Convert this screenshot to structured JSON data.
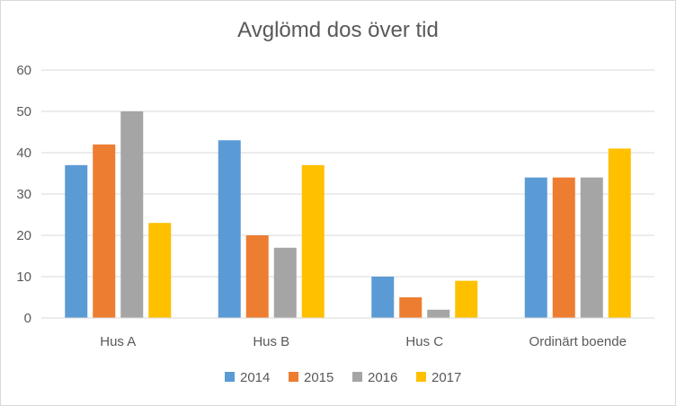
{
  "chart_data": {
    "type": "bar",
    "title": "Avglömd dos över tid",
    "categories": [
      "Hus A",
      "Hus B",
      "Hus C",
      "Ordinärt boende"
    ],
    "series": [
      {
        "name": "2014",
        "color": "#5b9bd5",
        "values": [
          37,
          43,
          10,
          34
        ]
      },
      {
        "name": "2015",
        "color": "#ed7d31",
        "values": [
          42,
          20,
          5,
          34
        ]
      },
      {
        "name": "2016",
        "color": "#a5a5a5",
        "values": [
          50,
          17,
          2,
          34
        ]
      },
      {
        "name": "2017",
        "color": "#ffc000",
        "values": [
          23,
          37,
          9,
          41
        ]
      }
    ],
    "ylim": [
      0,
      60
    ],
    "yticks": [
      0,
      10,
      20,
      30,
      40,
      50,
      60
    ],
    "xlabel": "",
    "ylabel": "",
    "grid": true,
    "legend": "bottom"
  }
}
